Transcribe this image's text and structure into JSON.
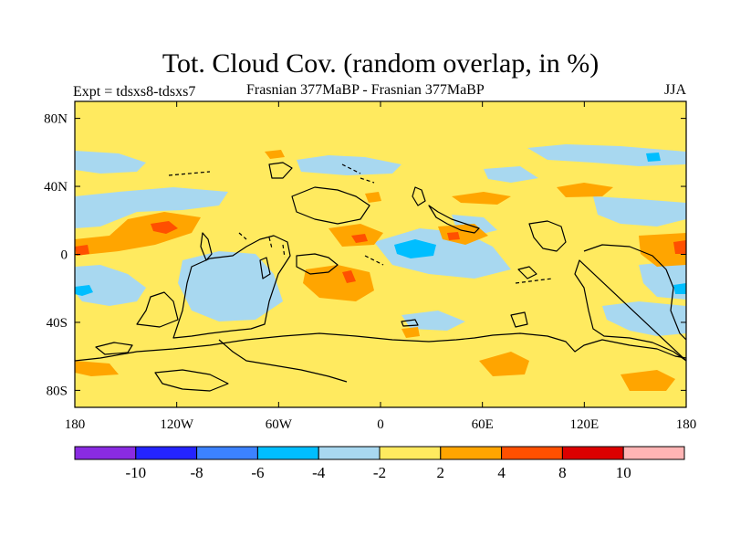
{
  "title": "Tot. Cloud Cov. (random overlap, in %)",
  "subtitle_left": "Expt = tdsxs8-tdsxs7",
  "subtitle_center": "Frasnian 377MaBP - Frasnian 377MaBP",
  "subtitle_right": "JJA",
  "map": {
    "lon_ticks": [
      "180",
      "120W",
      "60W",
      "0",
      "60E",
      "120E",
      "180"
    ],
    "lat_ticks": [
      "80N",
      "40N",
      "0",
      "40S",
      "80S"
    ],
    "lon_values": [
      -180,
      -120,
      -60,
      0,
      60,
      120,
      180
    ],
    "lat_values": [
      80,
      40,
      0,
      -40,
      -80
    ],
    "lon_range": [
      -180,
      180
    ],
    "lat_range": [
      -90,
      90
    ],
    "background_color": "#ffea5f"
  },
  "colorbar": {
    "labels": [
      "-10",
      "-8",
      "-6",
      "-4",
      "-2",
      "2",
      "4",
      "8",
      "10"
    ],
    "colors": [
      "#8a2be2",
      "#2424ff",
      "#3c82ff",
      "#00beff",
      "#a8d8f0",
      "#ffea5f",
      "#ffa500",
      "#ff5000",
      "#dc0000",
      "#ffb4b4"
    ]
  },
  "chart_data": {
    "type": "heatmap",
    "variable": "Tot. Cloud Cov. (random overlap, in %)",
    "season": "JJA",
    "x_range": [
      -180,
      180
    ],
    "y_range": [
      -90,
      90
    ],
    "contour_levels": [
      -10,
      -8,
      -6,
      -4,
      -2,
      2,
      4,
      8,
      10
    ]
  }
}
